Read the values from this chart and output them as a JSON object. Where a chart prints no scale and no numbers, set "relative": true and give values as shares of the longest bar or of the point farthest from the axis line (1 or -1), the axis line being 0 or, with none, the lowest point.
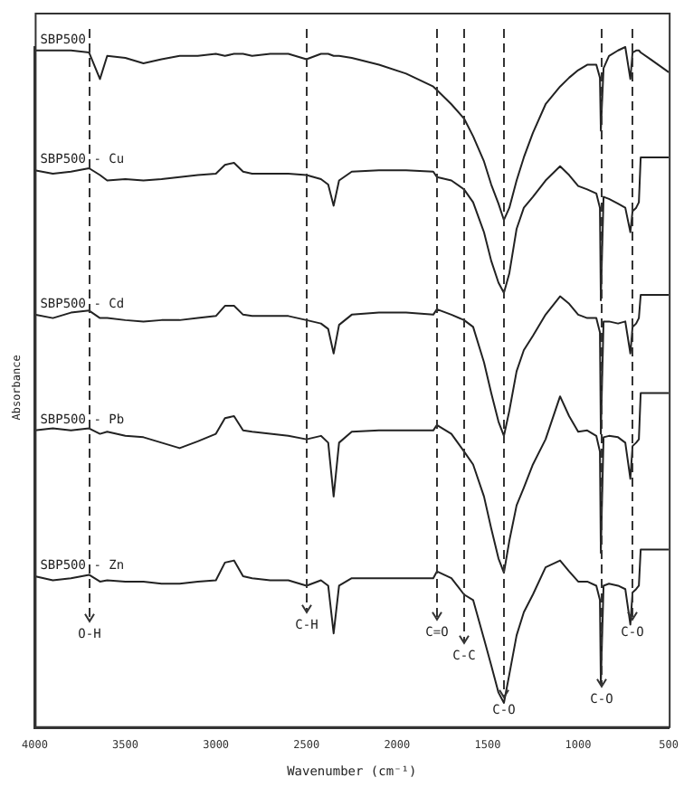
{
  "chart_data": {
    "type": "line",
    "relative": true,
    "xlabel": "Wavenumber (cm⁻¹)",
    "ylabel": "Absorbance",
    "x": [
      4000,
      3900,
      3800,
      3700,
      3640,
      3600,
      3500,
      3400,
      3300,
      3200,
      3100,
      3000,
      2950,
      2900,
      2850,
      2800,
      2700,
      2600,
      2500,
      2420,
      2380,
      2350,
      2320,
      2250,
      2100,
      1950,
      1800,
      1780,
      1700,
      1630,
      1580,
      1520,
      1480,
      1440,
      1410,
      1380,
      1340,
      1300,
      1250,
      1180,
      1100,
      1050,
      1000,
      950,
      900,
      880,
      875,
      860,
      830,
      780,
      740,
      712,
      700,
      680,
      665,
      656,
      655,
      600,
      500
    ],
    "xlim": [
      4000,
      500
    ],
    "xticks": [
      4000,
      3500,
      3000,
      2500,
      2000,
      1500,
      1000,
      500
    ],
    "tick_labels": "x",
    "grid": false,
    "marker": "none",
    "line_style": "solid",
    "series": [
      {
        "name": "SBP500",
        "color": "#222222",
        "values": [
          0.995,
          0.995,
          0.995,
          0.992,
          0.953,
          0.987,
          0.984,
          0.976,
          0.982,
          0.987,
          0.987,
          0.99,
          0.987,
          0.99,
          0.99,
          0.987,
          0.99,
          0.99,
          0.982,
          0.99,
          0.99,
          0.987,
          0.987,
          0.984,
          0.974,
          0.961,
          0.942,
          0.937,
          0.916,
          0.895,
          0.869,
          0.832,
          0.798,
          0.77,
          0.746,
          0.764,
          0.804,
          0.838,
          0.874,
          0.916,
          0.942,
          0.955,
          0.966,
          0.974,
          0.974,
          0.955,
          0.877,
          0.969,
          0.987,
          0.995,
          1,
          0.953,
          0.992,
          0.995,
          0.995,
          0.995,
          0.992,
          0.982,
          0.963
        ]
      },
      {
        "name": "SBP500 - Cu",
        "color": "#222222",
        "values": [
          0.819,
          0.814,
          0.817,
          0.822,
          0.812,
          0.804,
          0.806,
          0.804,
          0.806,
          0.809,
          0.812,
          0.814,
          0.827,
          0.83,
          0.817,
          0.814,
          0.814,
          0.814,
          0.812,
          0.806,
          0.798,
          0.767,
          0.804,
          0.817,
          0.819,
          0.819,
          0.817,
          0.809,
          0.804,
          0.791,
          0.772,
          0.728,
          0.686,
          0.654,
          0.639,
          0.668,
          0.733,
          0.764,
          0.78,
          0.804,
          0.825,
          0.812,
          0.796,
          0.791,
          0.785,
          0.764,
          0.628,
          0.78,
          0.777,
          0.77,
          0.764,
          0.728,
          0.759,
          0.764,
          0.772,
          0.772,
          0.838,
          0.838,
          0.838
        ]
      },
      {
        "name": "SBP500 - Cd",
        "color": "#222222",
        "values": [
          0.607,
          0.602,
          0.61,
          0.613,
          0.602,
          0.602,
          0.599,
          0.597,
          0.599,
          0.599,
          0.602,
          0.605,
          0.62,
          0.62,
          0.607,
          0.605,
          0.605,
          0.605,
          0.599,
          0.594,
          0.586,
          0.55,
          0.592,
          0.607,
          0.61,
          0.61,
          0.607,
          0.615,
          0.607,
          0.599,
          0.589,
          0.537,
          0.492,
          0.45,
          0.429,
          0.466,
          0.524,
          0.555,
          0.576,
          0.607,
          0.634,
          0.623,
          0.607,
          0.602,
          0.602,
          0.581,
          0.432,
          0.597,
          0.597,
          0.594,
          0.597,
          0.55,
          0.589,
          0.594,
          0.602,
          0.602,
          0.636,
          0.636,
          0.636
        ]
      },
      {
        "name": "SBP500 - Pb",
        "color": "#222222",
        "values": [
          0.437,
          0.44,
          0.437,
          0.44,
          0.432,
          0.435,
          0.429,
          0.427,
          0.419,
          0.411,
          0.421,
          0.432,
          0.455,
          0.458,
          0.437,
          0.435,
          0.432,
          0.429,
          0.424,
          0.429,
          0.419,
          0.34,
          0.419,
          0.435,
          0.437,
          0.437,
          0.437,
          0.445,
          0.432,
          0.406,
          0.387,
          0.34,
          0.293,
          0.249,
          0.228,
          0.275,
          0.327,
          0.353,
          0.387,
          0.424,
          0.487,
          0.458,
          0.435,
          0.437,
          0.429,
          0.406,
          0.257,
          0.427,
          0.429,
          0.427,
          0.419,
          0.366,
          0.414,
          0.419,
          0.424,
          0.424,
          0.492,
          0.492,
          0.492
        ]
      },
      {
        "name": "SBP500 - Zn",
        "color": "#222222",
        "values": [
          0.223,
          0.217,
          0.22,
          0.225,
          0.215,
          0.217,
          0.215,
          0.215,
          0.212,
          0.212,
          0.215,
          0.217,
          0.243,
          0.246,
          0.223,
          0.22,
          0.217,
          0.217,
          0.209,
          0.217,
          0.209,
          0.139,
          0.209,
          0.22,
          0.22,
          0.22,
          0.22,
          0.23,
          0.22,
          0.196,
          0.188,
          0.131,
          0.092,
          0.052,
          0.037,
          0.079,
          0.136,
          0.17,
          0.196,
          0.236,
          0.246,
          0.23,
          0.215,
          0.215,
          0.209,
          0.188,
          0.065,
          0.209,
          0.212,
          0.209,
          0.204,
          0.152,
          0.199,
          0.204,
          0.209,
          0.209,
          0.262,
          0.262,
          0.262
        ]
      }
    ],
    "ref_lines": [
      {
        "axis": "x",
        "value": 3700,
        "label": "O-H",
        "line_style": "dashed"
      },
      {
        "axis": "x",
        "value": 2500,
        "label": "C-H",
        "line_style": "dashed"
      },
      {
        "axis": "x",
        "value": 1780,
        "label": "C=O",
        "line_style": "dashed"
      },
      {
        "axis": "x",
        "value": 1630,
        "label": "C-C",
        "line_style": "dashed"
      },
      {
        "axis": "x",
        "value": 1410,
        "label": "C-O",
        "line_style": "dashed"
      },
      {
        "axis": "x",
        "value": 875,
        "label": "C-O",
        "line_style": "dashed"
      },
      {
        "axis": "x",
        "value": 710,
        "label": "C-O",
        "line_style": "dashed"
      }
    ]
  }
}
